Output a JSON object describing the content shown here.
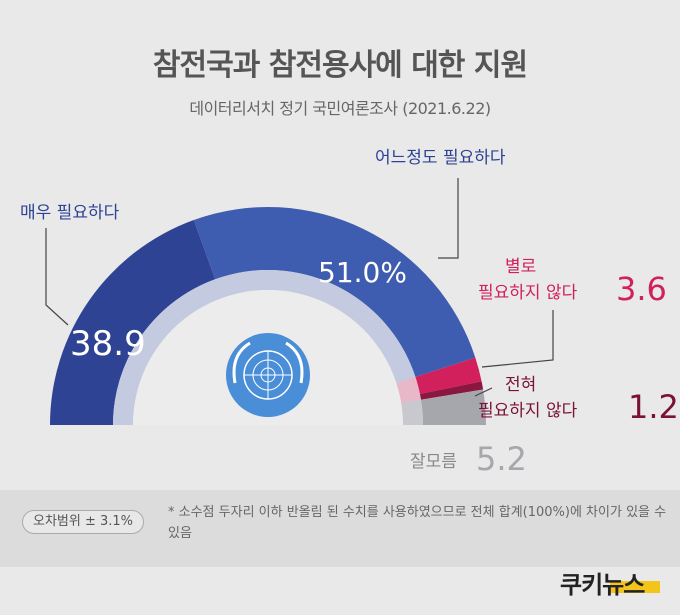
{
  "title": "참전국과 참전용사에 대한 지원",
  "subtitle": "데이터리서치 정기 국민여론조사 (2021.6.22)",
  "colors": {
    "very_needed": "#2e4394",
    "somewhat_needed": "#3f5db0",
    "not_very": "#d1205b",
    "not_at_all": "#8b1740",
    "dont_know": "#a6a7ad",
    "un_blue": "#4a8ed8"
  },
  "chart_data": {
    "type": "pie",
    "variant": "half-donut",
    "unit": "%",
    "slices": [
      {
        "label": "매우 필요하다",
        "value": 38.9,
        "display": "38.9"
      },
      {
        "label": "어느정도 필요하다",
        "value": 51.0,
        "display": "51.0%"
      },
      {
        "label_line1": "별로",
        "label_line2": "필요하지 않다",
        "value": 3.6,
        "display": "3.6"
      },
      {
        "label_line1": "전혀",
        "label_line2": "필요하지 않다",
        "value": 1.2,
        "display": "1.2"
      },
      {
        "label": "잘모름",
        "value": 5.2,
        "display": "5.2"
      }
    ]
  },
  "footer": {
    "badge": "오차범위 ± 3.1%",
    "note": "* 소수점 두자리 이하 반올림 된 수치를 사용하였으므로 전체 합계(100%)에 차이가 있을 수 있음"
  },
  "logo": {
    "text": "쿠키뉴스",
    "icon": "un-emblem-icon"
  }
}
